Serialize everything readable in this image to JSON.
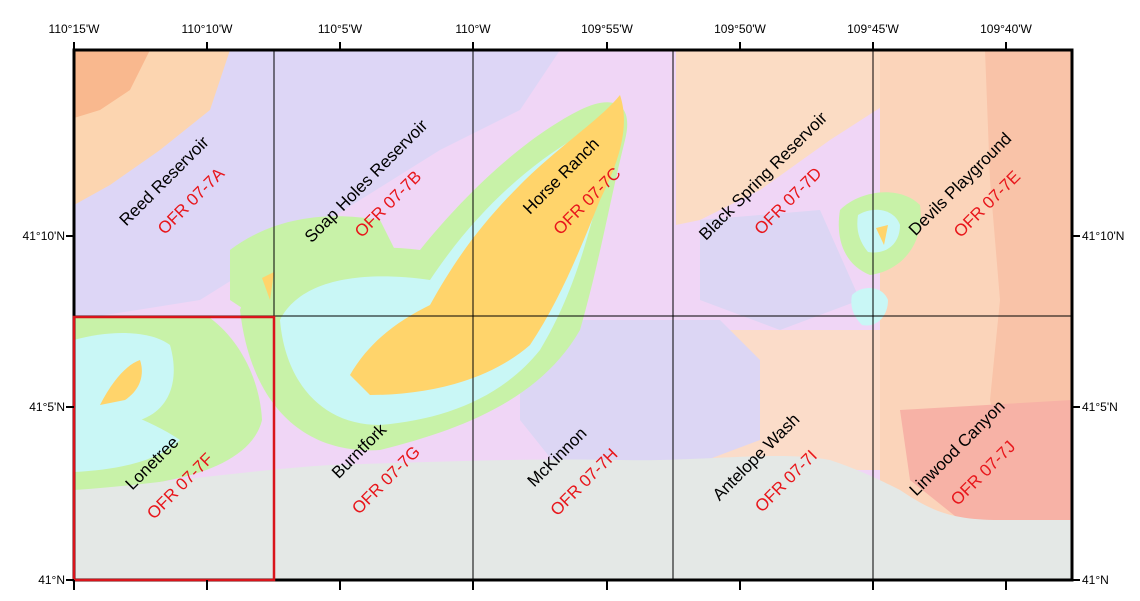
{
  "map": {
    "top_ticks": [
      "110°15'W",
      "110°10'W",
      "110°5'W",
      "110°W",
      "109°55'W",
      "109°50'W",
      "109°45'W",
      "109°40'W"
    ],
    "left_ticks": [
      "41°10'N",
      "41°5'N",
      "41°N"
    ],
    "right_ticks": [
      "41°10'N",
      "41°5'N",
      "41°N"
    ],
    "selected_quadrangle": "Lonetree",
    "colors": {
      "ofr_label": "#e8161b",
      "selection_outline": "#d9141b",
      "grid_line": "#000000"
    },
    "quadrangles": [
      {
        "name": "Reed Reservoir",
        "ofr": "OFR 07-7A"
      },
      {
        "name": "Soap Holes Reservoir",
        "ofr": "OFR 07-7B"
      },
      {
        "name": "Horse Ranch",
        "ofr": "OFR 07-7C"
      },
      {
        "name": "Black Spring Reservoir",
        "ofr": "OFR 07-7D"
      },
      {
        "name": "Devils Playground",
        "ofr": "OFR 07-7E"
      },
      {
        "name": "Lonetree",
        "ofr": "OFR 07-7F"
      },
      {
        "name": "Burntfork",
        "ofr": "OFR 07-7G"
      },
      {
        "name": "McKinnon",
        "ofr": "OFR 07-7H"
      },
      {
        "name": "Antelope Wash",
        "ofr": "OFR 07-7I"
      },
      {
        "name": "Linwood Canyon",
        "ofr": "OFR 07-7J"
      }
    ]
  }
}
